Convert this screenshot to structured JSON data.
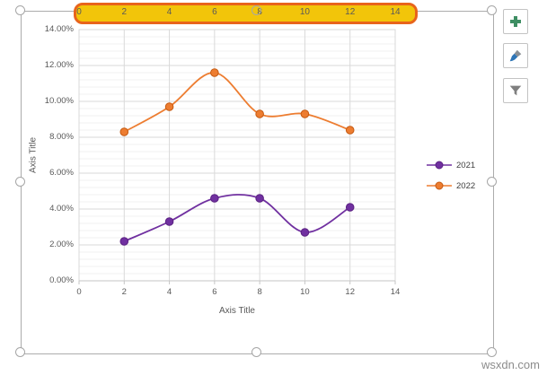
{
  "watermark": "wsxdn.com",
  "chart_selected": true,
  "side_buttons": {
    "icons": [
      "plus-icon",
      "brush-icon",
      "filter-icon"
    ]
  },
  "chart_data": {
    "type": "line",
    "smooth": true,
    "title": "",
    "xlabel": "Axis Title",
    "ylabel": "Axis Title",
    "x": [
      2,
      4,
      6,
      8,
      10,
      12
    ],
    "series": [
      {
        "name": "2021",
        "color": "#7030A0",
        "marker_border": "#5B2182",
        "values": [
          2.2,
          3.3,
          4.6,
          4.6,
          2.7,
          4.1
        ]
      },
      {
        "name": "2022",
        "color": "#ED7D31",
        "marker_border": "#C55A11",
        "values": [
          8.3,
          9.7,
          11.6,
          9.3,
          9.3,
          8.4
        ]
      }
    ],
    "y_axis": {
      "min": 0,
      "max": 14,
      "tick_step": 2,
      "minor_step": 0.4,
      "unit": "percent",
      "tick_labels": [
        "0.00%",
        "2.00%",
        "4.00%",
        "6.00%",
        "8.00%",
        "10.00%",
        "12.00%",
        "14.00%"
      ]
    },
    "x_axis": {
      "min": 0,
      "max": 14,
      "tick_step": 2,
      "tick_labels": [
        "0",
        "2",
        "4",
        "6",
        "8",
        "10",
        "12",
        "14"
      ]
    },
    "secondary_x_axis": {
      "position": "top",
      "highlighted": true,
      "highlight_fill": "#F2C50A",
      "highlight_border": "#E8641B",
      "tick_labels": [
        "0",
        "2",
        "4",
        "6",
        "8",
        "10",
        "12",
        "14"
      ]
    },
    "legend": {
      "position": "right",
      "entries": [
        "2021",
        "2022"
      ]
    },
    "grid": {
      "major_horizontal": true,
      "minor_horizontal": true,
      "major_vertical": true
    }
  }
}
